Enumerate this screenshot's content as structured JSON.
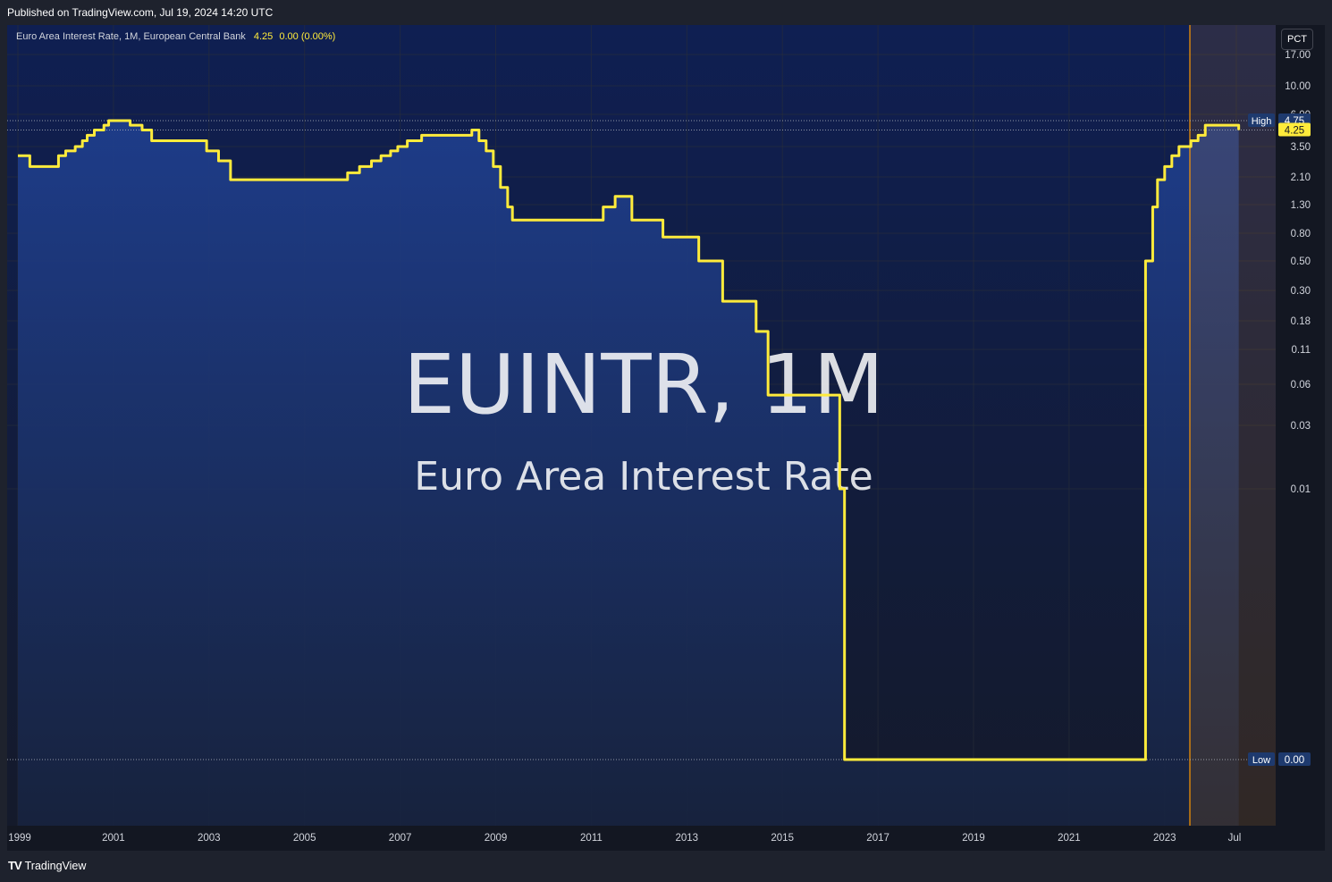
{
  "published": "Published on TradingView.com, Jul 19, 2024 14:20 UTC",
  "legend": {
    "name": "Euro Area Interest Rate, 1M, European Central Bank",
    "last": "4.25",
    "change": "0.00 (0.00%)"
  },
  "unit_button": "PCT",
  "watermark": {
    "symbol": "EUINTR, 1M",
    "subtitle": "Euro Area Interest Rate"
  },
  "footer": {
    "logo": "𝟭𝟳",
    "brand": "TradingView"
  },
  "markers": {
    "high": {
      "label": "High",
      "value": "4.75"
    },
    "low": {
      "label": "Low",
      "value": "0.00"
    },
    "current": {
      "value": "4.25"
    }
  },
  "colors": {
    "line": "#ffeb3b",
    "fill_top": "#1f3f8f",
    "fill_bottom": "#17233f",
    "background": "#131722",
    "highlight": "#ff9800"
  },
  "chart_data": {
    "type": "area",
    "title": "EUINTR, 1M",
    "subtitle": "Euro Area Interest Rate",
    "ylabel": "",
    "y_scale": "log",
    "y_ticks": [
      "17.00",
      "10.00",
      "6.00",
      "3.50",
      "2.10",
      "1.30",
      "0.80",
      "0.50",
      "0.30",
      "0.18",
      "0.11",
      "0.06",
      "0.03",
      "0.01"
    ],
    "x_ticks": [
      "1999",
      "2001",
      "2003",
      "2005",
      "2007",
      "2009",
      "2011",
      "2013",
      "2015",
      "2017",
      "2019",
      "2021",
      "2023",
      "Jul"
    ],
    "grid": true,
    "series": [
      {
        "name": "Euro Area Interest Rate",
        "x": [
          1999.0,
          1999.25,
          1999.85,
          2000.0,
          2000.2,
          2000.35,
          2000.45,
          2000.6,
          2000.8,
          2000.9,
          2001.35,
          2001.6,
          2001.8,
          2002.95,
          2003.2,
          2003.45,
          2005.9,
          2006.15,
          2006.4,
          2006.6,
          2006.8,
          2006.95,
          2007.15,
          2007.45,
          2008.5,
          2008.65,
          2008.8,
          2008.95,
          2009.1,
          2009.25,
          2009.35,
          2011.25,
          2011.5,
          2011.85,
          2012.5,
          2013.25,
          2013.75,
          2014.45,
          2014.7,
          2015.95,
          2016.2,
          2016.3,
          2022.5,
          2022.6,
          2022.75,
          2022.85,
          2023.0,
          2023.15,
          2023.3,
          2023.55,
          2023.7,
          2023.85,
          2024.45,
          2024.55
        ],
        "y": [
          3.0,
          2.5,
          3.0,
          3.25,
          3.5,
          3.75,
          4.0,
          4.25,
          4.5,
          4.75,
          4.5,
          4.25,
          3.75,
          3.25,
          2.75,
          2.0,
          2.25,
          2.5,
          2.75,
          3.0,
          3.25,
          3.5,
          3.75,
          4.0,
          4.25,
          3.75,
          3.25,
          2.5,
          1.75,
          1.25,
          1.0,
          1.25,
          1.5,
          1.0,
          0.75,
          0.5,
          0.25,
          0.15,
          0.05,
          0.05,
          0.01,
          0.0,
          0.0,
          0.5,
          1.25,
          2.0,
          2.5,
          3.0,
          3.5,
          3.75,
          4.0,
          4.5,
          4.5,
          4.25
        ]
      }
    ],
    "markers": {
      "high": 4.75,
      "low": 0.0,
      "last": 4.25
    }
  }
}
